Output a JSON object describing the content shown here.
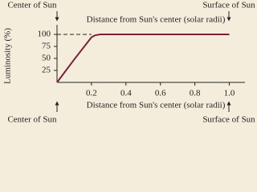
{
  "chart_data": {
    "type": "line",
    "x_label": "Distance from Sun's center (solar radii)",
    "x2_label": "Distance from Sun's center (solar radii)",
    "y_label": "Luminosity (%)",
    "annotations": [
      "Center of Sun",
      "Surface of Sun",
      "Center of Sun",
      "Surface of Sun"
    ],
    "x": [
      0,
      0.1,
      0.2,
      0.22,
      0.25,
      0.3,
      1.0
    ],
    "series": [
      {
        "color": "#7a1f3d",
        "values": [
          0,
          48,
          94,
          98,
          100,
          100,
          100
        ]
      }
    ],
    "reference_line": {
      "value": 100,
      "style": "dashed"
    },
    "xlim": [
      0,
      1.1
    ],
    "ylim": [
      0,
      120
    ],
    "xticks": [
      0.2,
      0.4,
      0.6,
      0.8,
      {
        "value": 1,
        "label": "1.0"
      }
    ],
    "yticks": [
      25,
      50,
      75,
      100
    ]
  }
}
